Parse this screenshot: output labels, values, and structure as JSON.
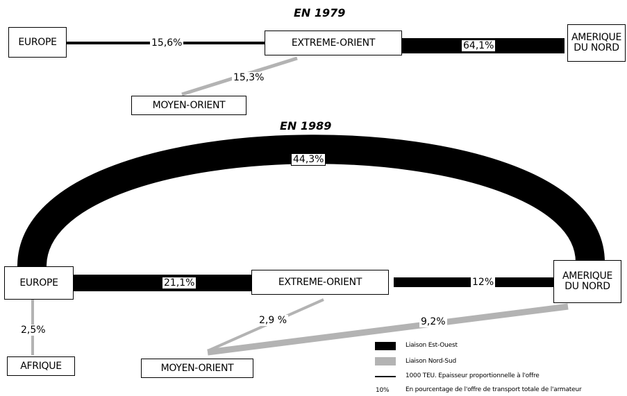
{
  "title_1979": "EN 1979",
  "title_1989": "EN 1989",
  "nodes_1979": {
    "europe": "EUROPE",
    "extreme_orient": "EXTREME-ORIENT",
    "amerique": "AMERIQUE\nDU NORD",
    "moyen_orient": "MOYEN-ORIENT"
  },
  "links_1979": {
    "europe_eo": "15,6%",
    "eo_amerique": "64,1%",
    "eo_moyen": "15,3%"
  },
  "nodes_1989": {
    "europe": "EUROPE",
    "extreme_orient": "EXTREME-ORIENT",
    "amerique": "AMERIQUE\nDU NORD",
    "moyen_orient": "MOYEN-ORIENT",
    "afrique": "AFRIQUE"
  },
  "links_1989": {
    "europe_amerique_arc": "44,3%",
    "europe_eo": "21,1%",
    "eo_amerique": "12%",
    "europe_afrique": "2,5%",
    "eo_moyen": "2,9 %",
    "amerique_moyen": "9,2%"
  },
  "legend": {
    "est_ouest": "Liaison Est-Ouest",
    "nord_sud": "Liaison Nord-Sud",
    "epaisseur": "1000 TEU. Epaisseur proportionnelle à l'offre",
    "pct_sym": "10%",
    "pourcentage": "En pourcentage de l'offre de transport totale de l'armateur"
  },
  "colors": {
    "est_ouest": "#000000",
    "nord_sud": "#b3b3b3"
  }
}
